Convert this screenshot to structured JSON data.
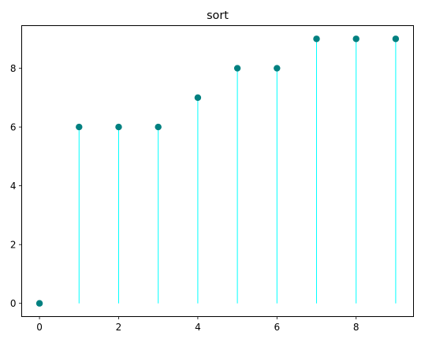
{
  "chart_data": {
    "type": "stem",
    "title": "sort",
    "xlabel": "",
    "ylabel": "",
    "x": [
      0,
      1,
      2,
      3,
      4,
      5,
      6,
      7,
      8,
      9
    ],
    "values": [
      0,
      6,
      6,
      6,
      7,
      8,
      8,
      9,
      9,
      9
    ],
    "xlim": [
      -0.45,
      9.45
    ],
    "ylim": [
      -0.45,
      9.45
    ],
    "xticks": [
      0,
      2,
      4,
      6,
      8
    ],
    "yticks": [
      0,
      2,
      4,
      6,
      8
    ],
    "grid": false,
    "colors": {
      "marker": "#008080",
      "stem": "#00ffff",
      "axis": "#000000"
    }
  }
}
